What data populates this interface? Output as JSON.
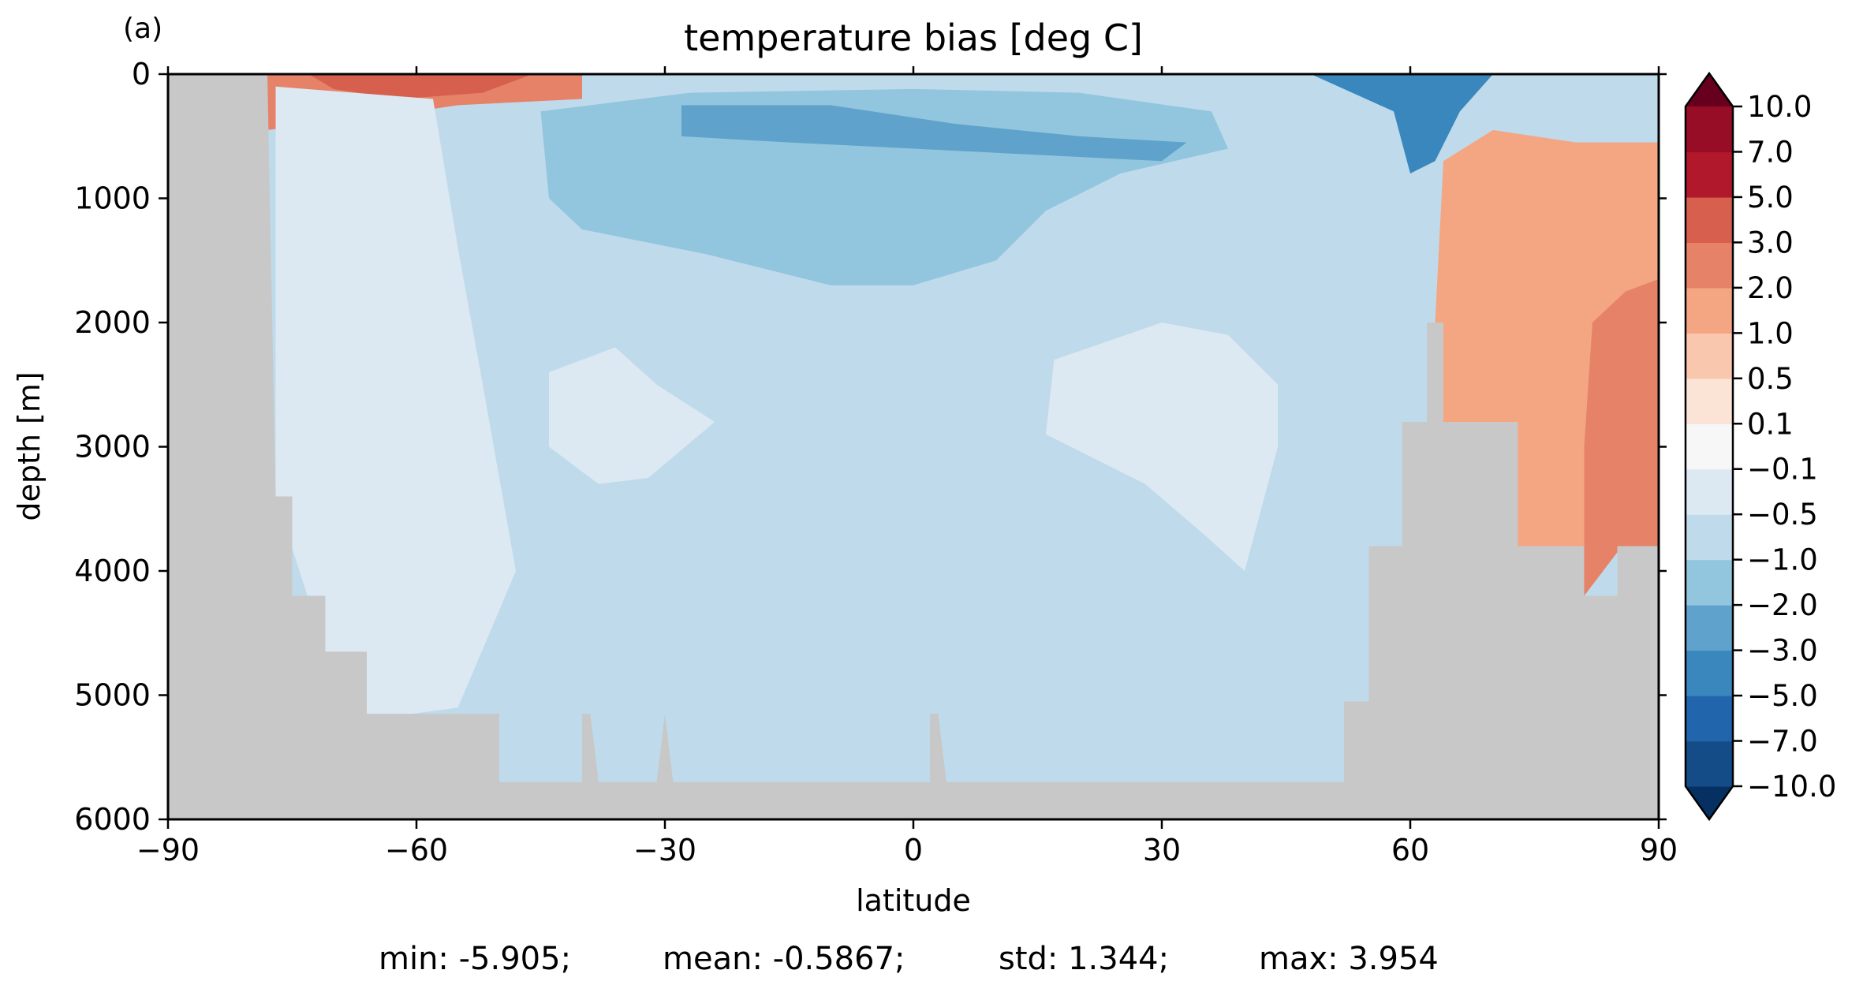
{
  "panel_label": "(a)",
  "chart_data": {
    "type": "heatmap",
    "subtype": "filled contour (latitude-depth section)",
    "title": "temperature bias [deg C]",
    "xlabel": "latitude",
    "ylabel": "depth [m]",
    "xlim": [
      -90,
      90
    ],
    "ylim": [
      6000,
      0
    ],
    "y_inverted": true,
    "x_ticks": [
      -90,
      -60,
      -30,
      0,
      30,
      60,
      90
    ],
    "x_tick_labels": [
      "−90",
      "−60",
      "−30",
      "0",
      "30",
      "60",
      "90"
    ],
    "y_ticks": [
      0,
      1000,
      2000,
      3000,
      4000,
      5000,
      6000
    ],
    "y_tick_labels": [
      "0",
      "1000",
      "2000",
      "3000",
      "4000",
      "5000",
      "6000"
    ],
    "land_mask_color": "#c8c8c8",
    "colorbar": {
      "extend": "both",
      "levels": [
        -10,
        -7,
        -5,
        -3,
        -2,
        -1,
        -0.5,
        -0.1,
        0.1,
        0.5,
        1,
        2,
        3,
        5,
        7,
        10
      ],
      "tick_labels": [
        "−10.0",
        "−7.0",
        "−5.0",
        "−3.0",
        "−2.0",
        "−1.0",
        "−0.5",
        "−0.1",
        "0.1",
        "0.5",
        "1.0",
        "2.0",
        "3.0",
        "5.0",
        "7.0",
        "10.0"
      ],
      "colors": [
        "#053061",
        "#134c87",
        "#2166ac",
        "#3a87bd",
        "#5fa2cb",
        "#92c5de",
        "#bfdbeb",
        "#dde9f2",
        "#f7f7f7",
        "#fbe4d6",
        "#f9c7ad",
        "#f4a582",
        "#e58267",
        "#d6604d",
        "#b2182b",
        "#960d25",
        "#67001f"
      ]
    },
    "regions": [
      {
        "name": "upper-ocean-warm-bias-south",
        "class": 12,
        "polygon": [
          [
            -79,
            0
          ],
          [
            -40,
            0
          ],
          [
            -40,
            200
          ],
          [
            -55,
            250
          ],
          [
            -65,
            350
          ],
          [
            -78,
            450
          ]
        ]
      },
      {
        "name": "upper-ocean-strong-warm-south",
        "class": 13,
        "polygon": [
          [
            -73,
            0
          ],
          [
            -46,
            0
          ],
          [
            -52,
            150
          ],
          [
            -62,
            200
          ],
          [
            -70,
            120
          ]
        ]
      },
      {
        "name": "subsurface-cold-bias-tropics",
        "class": 5,
        "polygon": [
          [
            -45,
            300
          ],
          [
            -27,
            150
          ],
          [
            0,
            120
          ],
          [
            20,
            150
          ],
          [
            36,
            300
          ],
          [
            38,
            600
          ],
          [
            25,
            800
          ],
          [
            16,
            1100
          ],
          [
            10,
            1500
          ],
          [
            0,
            1700
          ],
          [
            -10,
            1700
          ],
          [
            -25,
            1450
          ],
          [
            -40,
            1250
          ],
          [
            -44,
            1000
          ]
        ]
      },
      {
        "name": "subsurface-strong-cold-tropics",
        "class": 4,
        "polygon": [
          [
            -28,
            250
          ],
          [
            -10,
            250
          ],
          [
            5,
            400
          ],
          [
            20,
            500
          ],
          [
            33,
            550
          ],
          [
            30,
            700
          ],
          [
            15,
            650
          ],
          [
            0,
            600
          ],
          [
            -15,
            550
          ],
          [
            -28,
            500
          ]
        ]
      },
      {
        "name": "subpolar-cold-bias-north",
        "class": 3,
        "polygon": [
          [
            48,
            0
          ],
          [
            70,
            0
          ],
          [
            66,
            300
          ],
          [
            63,
            700
          ],
          [
            60,
            800
          ],
          [
            58,
            300
          ]
        ]
      },
      {
        "name": "arctic-warm-bias",
        "class": 11,
        "polygon": [
          [
            64,
            700
          ],
          [
            70,
            450
          ],
          [
            80,
            550
          ],
          [
            90,
            550
          ],
          [
            90,
            3800
          ],
          [
            73,
            3800
          ],
          [
            70,
            2800
          ],
          [
            64,
            2800
          ],
          [
            63,
            2000
          ]
        ]
      },
      {
        "name": "arctic-deep-warm-bias",
        "class": 12,
        "polygon": [
          [
            82,
            2000
          ],
          [
            86,
            1750
          ],
          [
            90,
            1650
          ],
          [
            90,
            3800
          ],
          [
            85,
            3850
          ],
          [
            81,
            4200
          ],
          [
            81,
            3000
          ]
        ]
      },
      {
        "name": "abyssal-near-zero-south",
        "class": 7,
        "polygon": [
          [
            -77,
            100
          ],
          [
            -58,
            200
          ],
          [
            -55,
            1400
          ],
          [
            -52,
            2500
          ],
          [
            -48,
            4000
          ],
          [
            -55,
            5100
          ],
          [
            -66,
            5200
          ],
          [
            -71,
            4650
          ],
          [
            -77,
            3400
          ]
        ]
      },
      {
        "name": "mid-depth-near-zero-south",
        "class": 7,
        "polygon": [
          [
            -44,
            2400
          ],
          [
            -36,
            2200
          ],
          [
            -31,
            2500
          ],
          [
            -24,
            2800
          ],
          [
            -32,
            3250
          ],
          [
            -38,
            3300
          ],
          [
            -44,
            3000
          ]
        ]
      },
      {
        "name": "mid-depth-near-zero-north",
        "class": 7,
        "polygon": [
          [
            17,
            2300
          ],
          [
            30,
            2000
          ],
          [
            38,
            2100
          ],
          [
            44,
            2500
          ],
          [
            44,
            3000
          ],
          [
            40,
            4000
          ],
          [
            35,
            3700
          ],
          [
            28,
            3300
          ],
          [
            16,
            2900
          ]
        ]
      }
    ],
    "land_profile": [
      [
        -90,
        0
      ],
      [
        -78,
        0
      ],
      [
        -77,
        3400
      ],
      [
        -75,
        3400
      ],
      [
        -75,
        4200
      ],
      [
        -71,
        4200
      ],
      [
        -71,
        4650
      ],
      [
        -66,
        4650
      ],
      [
        -66,
        5150
      ],
      [
        -50,
        5150
      ],
      [
        -50,
        5700
      ],
      [
        -40,
        5700
      ],
      [
        -40,
        5150
      ],
      [
        -39,
        5150
      ],
      [
        -38,
        5700
      ],
      [
        -31,
        5700
      ],
      [
        -30,
        5150
      ],
      [
        -29,
        5700
      ],
      [
        2,
        5700
      ],
      [
        2,
        5150
      ],
      [
        3,
        5150
      ],
      [
        4,
        5700
      ],
      [
        52,
        5700
      ],
      [
        52,
        5050
      ],
      [
        55,
        5050
      ],
      [
        55,
        3800
      ],
      [
        59,
        3800
      ],
      [
        59,
        2800
      ],
      [
        62,
        2800
      ],
      [
        62,
        2000
      ],
      [
        64,
        2000
      ],
      [
        64,
        2800
      ],
      [
        73,
        2800
      ],
      [
        73,
        3800
      ],
      [
        81,
        3800
      ],
      [
        81,
        4200
      ],
      [
        85,
        4200
      ],
      [
        85,
        3800
      ],
      [
        90,
        3800
      ],
      [
        90,
        6000
      ],
      [
        -90,
        6000
      ]
    ],
    "stats": {
      "min": "min: -5.905;",
      "mean": "mean: -0.5867;",
      "std": "std: 1.344;",
      "max": "max: 3.954"
    }
  }
}
